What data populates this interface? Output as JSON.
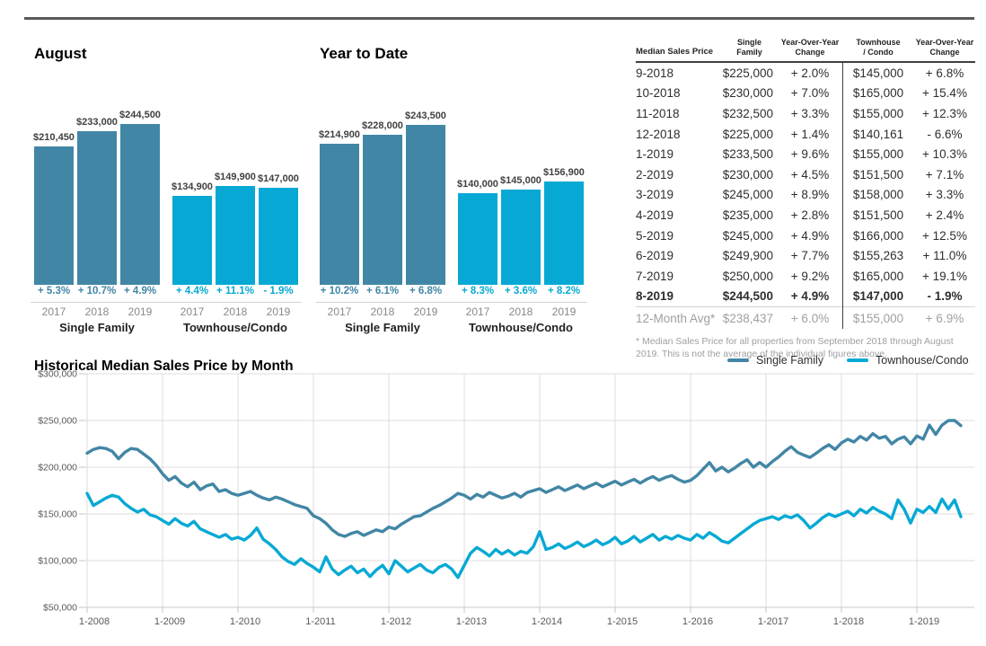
{
  "report": {
    "august": {
      "title": "August",
      "groups": [
        {
          "label": "Single Family",
          "color": "#4286a5",
          "bars": [
            {
              "year": "2017",
              "value": 210450,
              "value_label": "$210,450",
              "change": "+ 5.3%"
            },
            {
              "year": "2018",
              "value": 233000,
              "value_label": "$233,000",
              "change": "+ 10.7%"
            },
            {
              "year": "2019",
              "value": 244500,
              "value_label": "$244,500",
              "change": "+ 4.9%"
            }
          ]
        },
        {
          "label": "Townhouse/Condo",
          "color": "#07a9d4",
          "bars": [
            {
              "year": "2017",
              "value": 134900,
              "value_label": "$134,900",
              "change": "+ 4.4%"
            },
            {
              "year": "2018",
              "value": 149900,
              "value_label": "$149,900",
              "change": "+ 11.1%"
            },
            {
              "year": "2019",
              "value": 147000,
              "value_label": "$147,000",
              "change": "- 1.9%"
            }
          ]
        }
      ]
    },
    "ytd": {
      "title": "Year to Date",
      "groups": [
        {
          "label": "Single Family",
          "color": "#4286a5",
          "bars": [
            {
              "year": "2017",
              "value": 214900,
              "value_label": "$214,900",
              "change": "+ 10.2%"
            },
            {
              "year": "2018",
              "value": 228000,
              "value_label": "$228,000",
              "change": "+ 6.1%"
            },
            {
              "year": "2019",
              "value": 243500,
              "value_label": "$243,500",
              "change": "+ 6.8%"
            }
          ]
        },
        {
          "label": "Townhouse/Condo",
          "color": "#07a9d4",
          "bars": [
            {
              "year": "2017",
              "value": 140000,
              "value_label": "$140,000",
              "change": "+ 8.3%"
            },
            {
              "year": "2018",
              "value": 145000,
              "value_label": "$145,000",
              "change": "+ 3.6%"
            },
            {
              "year": "2019",
              "value": 156900,
              "value_label": "$156,900",
              "change": "+ 8.2%"
            }
          ]
        }
      ]
    },
    "table": {
      "col_headers": [
        "Median Sales Price",
        "Single\nFamily",
        "Year-Over-Year\nChange",
        "Townhouse\n/ Condo",
        "Year-Over-Year\nChange"
      ],
      "rows": [
        {
          "month": "9-2018",
          "sf": "$225,000",
          "sf_chg": "+ 2.0%",
          "tc": "$145,000",
          "tc_chg": "+ 6.8%",
          "bold": false
        },
        {
          "month": "10-2018",
          "sf": "$230,000",
          "sf_chg": "+ 7.0%",
          "tc": "$165,000",
          "tc_chg": "+ 15.4%",
          "bold": false
        },
        {
          "month": "11-2018",
          "sf": "$232,500",
          "sf_chg": "+ 3.3%",
          "tc": "$155,000",
          "tc_chg": "+ 12.3%",
          "bold": false
        },
        {
          "month": "12-2018",
          "sf": "$225,000",
          "sf_chg": "+ 1.4%",
          "tc": "$140,161",
          "tc_chg": "- 6.6%",
          "bold": false
        },
        {
          "month": "1-2019",
          "sf": "$233,500",
          "sf_chg": "+ 9.6%",
          "tc": "$155,000",
          "tc_chg": "+ 10.3%",
          "bold": false
        },
        {
          "month": "2-2019",
          "sf": "$230,000",
          "sf_chg": "+ 4.5%",
          "tc": "$151,500",
          "tc_chg": "+ 7.1%",
          "bold": false
        },
        {
          "month": "3-2019",
          "sf": "$245,000",
          "sf_chg": "+ 8.9%",
          "tc": "$158,000",
          "tc_chg": "+ 3.3%",
          "bold": false
        },
        {
          "month": "4-2019",
          "sf": "$235,000",
          "sf_chg": "+ 2.8%",
          "tc": "$151,500",
          "tc_chg": "+ 2.4%",
          "bold": false
        },
        {
          "month": "5-2019",
          "sf": "$245,000",
          "sf_chg": "+ 4.9%",
          "tc": "$166,000",
          "tc_chg": "+ 12.5%",
          "bold": false
        },
        {
          "month": "6-2019",
          "sf": "$249,900",
          "sf_chg": "+ 7.7%",
          "tc": "$155,263",
          "tc_chg": "+ 11.0%",
          "bold": false
        },
        {
          "month": "7-2019",
          "sf": "$250,000",
          "sf_chg": "+ 9.2%",
          "tc": "$165,000",
          "tc_chg": "+ 19.1%",
          "bold": false
        },
        {
          "month": "8-2019",
          "sf": "$244,500",
          "sf_chg": "+ 4.9%",
          "tc": "$147,000",
          "tc_chg": "- 1.9%",
          "bold": true
        }
      ],
      "avg_row": {
        "month": "12-Month Avg*",
        "sf": "$238,437",
        "sf_chg": "+ 6.0%",
        "tc": "$155,000",
        "tc_chg": "+ 6.9%"
      },
      "footnote": "* Median Sales Price for all properties from September 2018 through August 2019. This is not the average of the individual figures above."
    }
  },
  "chart_data": {
    "type": "line",
    "title": "Historical Median Sales Price by Month",
    "x_tick_labels": [
      "1-2008",
      "1-2009",
      "1-2010",
      "1-2011",
      "1-2012",
      "1-2013",
      "1-2014",
      "1-2015",
      "1-2016",
      "1-2017",
      "1-2018",
      "1-2019"
    ],
    "y_ticks": [
      300000,
      250000,
      200000,
      150000,
      100000,
      50000
    ],
    "y_tick_labels": [
      "$300,000",
      "$250,000",
      "$200,000",
      "$150,000",
      "$100,000",
      "$50,000"
    ],
    "ylim": [
      50000,
      300000
    ],
    "months_start": "1-2008",
    "months_end": "8-2019",
    "grid": true,
    "legend_position": "top-right",
    "series": [
      {
        "name": "Single Family",
        "color": "#4286a5",
        "values_usd": [
          215000,
          219000,
          221000,
          220000,
          217000,
          209000,
          216000,
          220000,
          219000,
          214000,
          209000,
          202000,
          193000,
          186000,
          190000,
          183000,
          179000,
          184000,
          176000,
          180000,
          182000,
          174000,
          176000,
          172000,
          170000,
          172000,
          174000,
          170000,
          167000,
          165000,
          168000,
          166000,
          163000,
          160000,
          158000,
          156000,
          148000,
          145000,
          140000,
          133000,
          128000,
          126000,
          129000,
          131000,
          127000,
          130000,
          133000,
          131000,
          136000,
          134000,
          139000,
          143000,
          147000,
          148000,
          152000,
          156000,
          159000,
          163000,
          167000,
          172000,
          170000,
          166000,
          171000,
          168000,
          173000,
          170000,
          167000,
          169000,
          172000,
          168000,
          173000,
          175000,
          177000,
          173000,
          176000,
          179000,
          175000,
          178000,
          181000,
          177000,
          180000,
          183000,
          179000,
          182000,
          185000,
          181000,
          184000,
          187000,
          183000,
          187000,
          190000,
          186000,
          189000,
          191000,
          187000,
          184000,
          186000,
          191000,
          198000,
          205000,
          196000,
          200000,
          195000,
          199000,
          204000,
          208000,
          200000,
          205000,
          200000,
          206000,
          211000,
          217000,
          222000,
          216000,
          213000,
          210450,
          215000,
          220000,
          224000,
          219000,
          226000,
          230000,
          227000,
          233000,
          229000,
          236000,
          231000,
          233000,
          225000,
          230000,
          232500,
          225000,
          233500,
          230000,
          245000,
          235000,
          245000,
          249900,
          250000,
          244500
        ]
      },
      {
        "name": "Townhouse/Condo",
        "color": "#07a9d4",
        "values_usd": [
          172000,
          159000,
          163000,
          167000,
          170000,
          168000,
          161000,
          156000,
          152000,
          155000,
          149000,
          147000,
          143000,
          139000,
          145000,
          140000,
          137000,
          142000,
          134000,
          131000,
          128000,
          125000,
          128000,
          123000,
          125000,
          122000,
          127000,
          135000,
          123000,
          118000,
          112000,
          104000,
          99000,
          96000,
          102000,
          97000,
          93000,
          88000,
          104000,
          91000,
          85000,
          90000,
          94000,
          87000,
          91000,
          83000,
          90000,
          95000,
          86000,
          100000,
          94000,
          88000,
          92000,
          96000,
          90000,
          87000,
          93000,
          96000,
          91000,
          82000,
          95000,
          108000,
          114000,
          110000,
          105000,
          112000,
          107000,
          111000,
          106000,
          110000,
          108000,
          115000,
          131000,
          112000,
          114000,
          118000,
          113000,
          116000,
          120000,
          115000,
          118000,
          122000,
          117000,
          120000,
          125000,
          118000,
          121000,
          126000,
          120000,
          124000,
          128000,
          122000,
          126000,
          123000,
          127000,
          124000,
          122000,
          128000,
          124000,
          130000,
          126000,
          121000,
          119000,
          124000,
          129000,
          134000,
          139000,
          143000,
          145000,
          147000,
          144000,
          148000,
          146000,
          149000,
          143000,
          134900,
          140000,
          146000,
          150000,
          147000,
          150000,
          153000,
          148000,
          155000,
          151000,
          157000,
          153000,
          149900,
          145000,
          165000,
          155000,
          140161,
          155000,
          151500,
          158000,
          151500,
          166000,
          155263,
          165000,
          147000
        ]
      }
    ]
  }
}
